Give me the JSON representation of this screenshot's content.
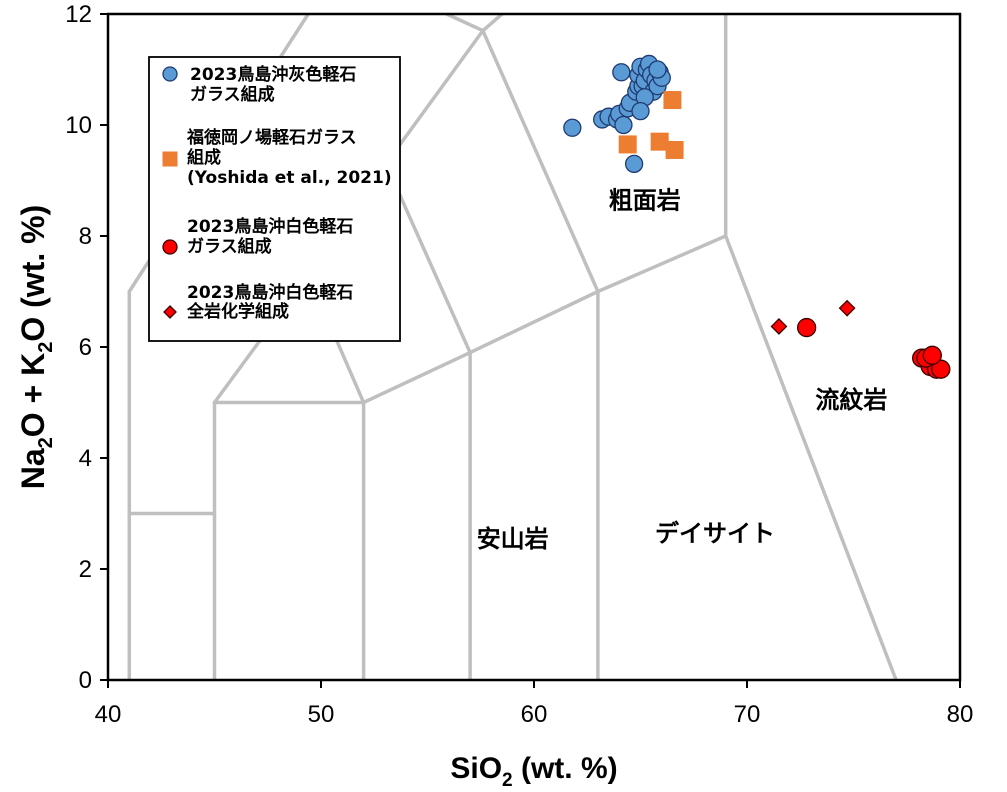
{
  "chart_data": {
    "type": "scatter",
    "title": "",
    "xlabel": "SiO",
    "xlabel_sub": "2",
    "xlabel_unit": " (wt. %)",
    "ylabel_parts": [
      "Na",
      "2",
      "O + K",
      "2",
      "O (wt. %)"
    ],
    "xlim": [
      40,
      80
    ],
    "ylim": [
      0,
      12
    ],
    "x_ticks": [
      "40",
      "50",
      "60",
      "70",
      "80"
    ],
    "y_ticks": [
      "0",
      "2",
      "4",
      "6",
      "8",
      "10",
      "12"
    ],
    "grid": false,
    "legend_position": "top-left",
    "field_boundaries": [
      [
        [
          41,
          0
        ],
        [
          41,
          7
        ]
      ],
      [
        [
          41,
          3
        ],
        [
          45,
          3
        ]
      ],
      [
        [
          45,
          0
        ],
        [
          45,
          5
        ]
      ],
      [
        [
          45,
          5
        ],
        [
          52,
          5
        ]
      ],
      [
        [
          52,
          0
        ],
        [
          52,
          5
        ]
      ],
      [
        [
          52,
          5
        ],
        [
          57,
          5.9
        ]
      ],
      [
        [
          57,
          0
        ],
        [
          57,
          5.9
        ]
      ],
      [
        [
          57,
          5.9
        ],
        [
          63,
          7
        ]
      ],
      [
        [
          63,
          0
        ],
        [
          63,
          7
        ]
      ],
      [
        [
          63,
          7
        ],
        [
          69,
          8
        ]
      ],
      [
        [
          69,
          8
        ],
        [
          77,
          0
        ]
      ],
      [
        [
          69,
          8
        ],
        [
          69,
          12
        ]
      ],
      [
        [
          41,
          7
        ],
        [
          49.4,
          12
        ]
      ],
      [
        [
          45,
          5
        ],
        [
          49.4,
          7.3
        ]
      ],
      [
        [
          52,
          5
        ],
        [
          49.4,
          7.3
        ]
      ],
      [
        [
          57,
          5.9
        ],
        [
          53.05,
          9.3
        ]
      ],
      [
        [
          49.4,
          7.3
        ],
        [
          53.05,
          9.3
        ]
      ],
      [
        [
          53.05,
          9.3
        ],
        [
          57.6,
          11.7
        ]
      ],
      [
        [
          57.6,
          11.7
        ],
        [
          58.5,
          12
        ]
      ],
      [
        [
          63,
          7
        ],
        [
          57.6,
          11.7
        ]
      ],
      [
        [
          57.6,
          11.7
        ],
        [
          55.9,
          12
        ]
      ]
    ],
    "field_labels": [
      {
        "text": "粗面岩",
        "x": 65.2,
        "y": 8.5
      },
      {
        "text": "流紋岩",
        "x": 74.9,
        "y": 4.9
      },
      {
        "text": "安山岩",
        "x": 59.0,
        "y": 2.4
      },
      {
        "text": "デイサイト",
        "x": 68.5,
        "y": 2.5
      }
    ],
    "series": [
      {
        "name": "2023鳥島沖灰色軽石ガラス組成",
        "legend_lines": [
          "2023鳥島沖灰色軽石",
          "ガラス組成"
        ],
        "marker": "circle",
        "color": "#5b9bd5",
        "stroke": "#1f3b73",
        "x": [
          61.8,
          63.2,
          63.5,
          63.9,
          64.0,
          64.1,
          64.4,
          64.5,
          64.8,
          64.9,
          64.9,
          65.0,
          65.1,
          65.2,
          65.3,
          65.4,
          65.5,
          65.6,
          65.7,
          65.8,
          65.9,
          66.0,
          65.2,
          64.7,
          65.0,
          65.8,
          64.2
        ],
        "y": [
          9.95,
          10.1,
          10.15,
          10.1,
          10.2,
          10.95,
          10.3,
          10.4,
          10.6,
          10.7,
          10.9,
          11.05,
          10.7,
          10.8,
          11.0,
          11.1,
          10.9,
          10.6,
          10.8,
          10.7,
          10.95,
          10.85,
          10.5,
          9.3,
          10.25,
          11.0,
          10.0
        ]
      },
      {
        "name": "福徳岡ノ場軽石ガラス組成 (Yoshida et al., 2021)",
        "legend_lines": [
          "福徳岡ノ場軽石ガラス",
          "組成",
          "(Yoshida et al., 2021)"
        ],
        "marker": "square",
        "color": "#ed7d31",
        "stroke": "#ed7d31",
        "x": [
          64.4,
          65.9,
          66.5,
          66.6
        ],
        "y": [
          9.65,
          9.7,
          10.45,
          9.55
        ]
      },
      {
        "name": "2023鳥島沖白色軽石ガラス組成",
        "legend_lines": [
          "2023鳥島沖白色軽石",
          "ガラス組成"
        ],
        "marker": "circle",
        "color": "#ff0000",
        "stroke": "#3a0000",
        "x": [
          72.8,
          78.2,
          78.5,
          78.6,
          78.9,
          79.1,
          78.4,
          78.7
        ],
        "y": [
          6.35,
          5.8,
          5.75,
          5.65,
          5.6,
          5.6,
          5.8,
          5.85
        ]
      },
      {
        "name": "2023鳥島沖白色軽石全岩化学組成",
        "legend_lines": [
          "2023鳥島沖白色軽石",
          "全岩化学組成"
        ],
        "marker": "diamond",
        "color": "#ff0000",
        "stroke": "#3a0000",
        "x": [
          71.5,
          74.7
        ],
        "y": [
          6.37,
          6.7
        ]
      }
    ]
  }
}
